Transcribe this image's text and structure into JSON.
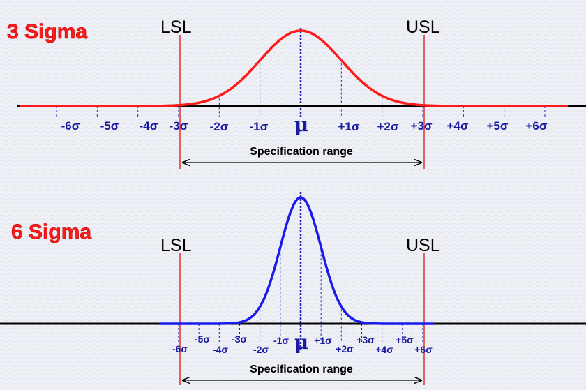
{
  "panels": [
    {
      "id": "three-sigma",
      "title": "3 Sigma",
      "lsl": "LSL",
      "usl": "USL",
      "mean_label": "μ",
      "spec_label": "Specification range",
      "curve_color": "#ff1a1a",
      "spec_limits_sigma": [
        -3,
        3
      ],
      "sigma_labels": [
        "-6σ",
        "-5σ",
        "-4σ",
        "-3σ",
        "-2σ",
        "-1σ",
        "+1σ",
        "+2σ",
        "+3σ",
        "+4σ",
        "+5σ",
        "+6σ"
      ]
    },
    {
      "id": "six-sigma",
      "title": "6 Sigma",
      "lsl": "LSL",
      "usl": "USL",
      "mean_label": "μ",
      "spec_label": "Specification range",
      "curve_color": "#1a1aee",
      "spec_limits_sigma": [
        -6,
        6
      ],
      "sigma_labels": [
        "-6σ",
        "-5σ",
        "-4σ",
        "-3σ",
        "-2σ",
        "-1σ",
        "+1σ",
        "+2σ",
        "+3σ",
        "+4σ",
        "+5σ",
        "+6σ"
      ]
    }
  ],
  "colors": {
    "limit_line": "#e03030",
    "sigma_line": "#2020c0",
    "axis": "#000000"
  }
}
